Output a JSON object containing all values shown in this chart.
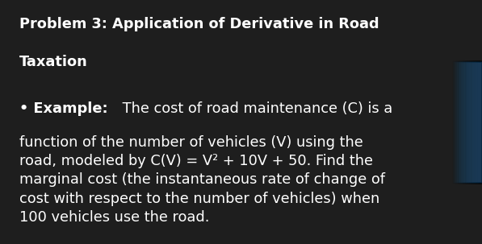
{
  "background_color": "#1e1e1e",
  "text_color": "#ffffff",
  "title_line1": "Problem 3: Application of Derivative in Road",
  "title_line2": "Taxation",
  "title_fontsize": 12.8,
  "title_fontweight": "bold",
  "bullet_label": "Example:",
  "bullet_label_fontsize": 12.8,
  "bullet_label_fontweight": "bold",
  "body_fontsize": 12.8,
  "right_glow_color": "#0d3a5c",
  "fig_width": 5.97,
  "fig_height": 3.03,
  "dpi": 100
}
